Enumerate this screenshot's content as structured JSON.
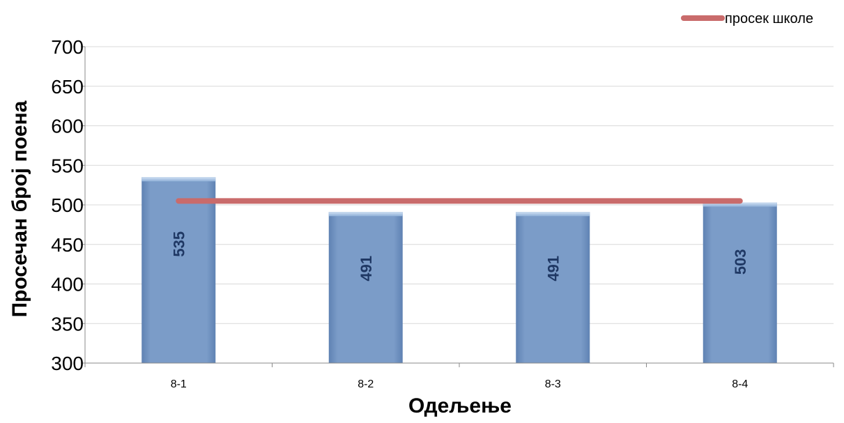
{
  "chart_data": {
    "type": "bar",
    "categories": [
      "8-1",
      "8-2",
      "8-3",
      "8-4"
    ],
    "series": [
      {
        "values": [
          535,
          491,
          491,
          503
        ],
        "color": "#7b9cc8"
      },
      {
        "name": "просек школе",
        "type": "line",
        "values": [
          505,
          505,
          505,
          505
        ],
        "color": "#c96b6b"
      }
    ],
    "xlabel": "Одељење",
    "ylabel": "Просечан број поена",
    "ylim": [
      300,
      700
    ],
    "yticks": [
      300,
      350,
      400,
      450,
      500,
      550,
      600,
      650,
      700
    ],
    "grid": true,
    "legend": "top-right"
  }
}
